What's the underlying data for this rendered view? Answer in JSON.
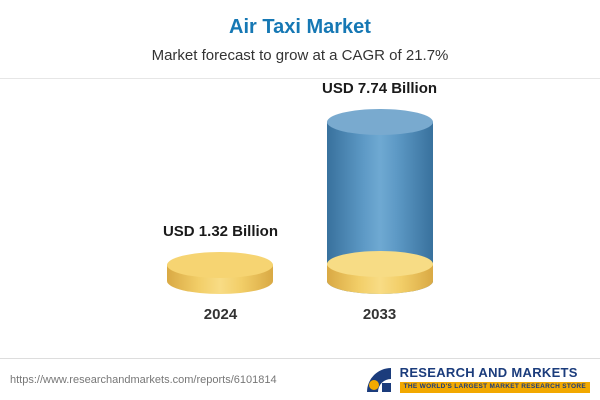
{
  "header": {
    "title": "Air Taxi Market",
    "subtitle": "Market forecast to grow at a CAGR of 21.7%"
  },
  "chart_data": {
    "type": "bar",
    "title": "Air Taxi Market",
    "subtitle": "Market forecast to grow at a CAGR of 21.7%",
    "categories": [
      "2024",
      "2033"
    ],
    "values": [
      1.32,
      7.74
    ],
    "unit": "USD Billion",
    "value_labels": [
      "USD 1.32 Billion",
      "USD 7.74 Billion"
    ],
    "cagr": "21.7%",
    "ylim": [
      0,
      8
    ],
    "legend": "none",
    "grid": "off",
    "bar_colors": [
      "#F2CE68",
      "#4E8BBA"
    ],
    "bar_style": "3d-cylinder"
  },
  "footer": {
    "url": "https://www.researchandmarkets.com/reports/6101814",
    "logo_name": "RESEARCH AND MARKETS",
    "logo_tagline": "THE WORLD'S LARGEST MARKET RESEARCH STORE"
  }
}
